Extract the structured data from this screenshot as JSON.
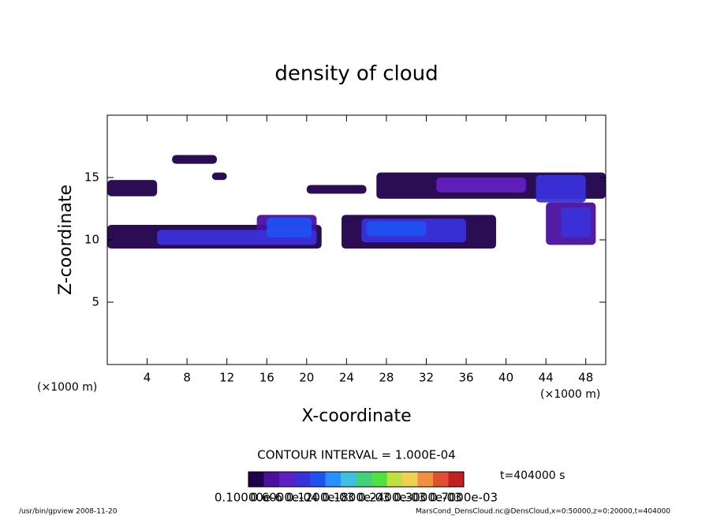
{
  "chart_data": {
    "type": "contour",
    "title": "density of cloud",
    "xlabel": "X-coordinate",
    "ylabel": "Z-coordinate",
    "x_unit": "(×1000 m)",
    "xlim": [
      0,
      50
    ],
    "ylim": [
      0,
      20
    ],
    "xticks": [
      4,
      8,
      12,
      16,
      20,
      24,
      28,
      32,
      36,
      40,
      44,
      48
    ],
    "yticks": [
      5,
      10,
      15
    ],
    "patches": [
      {
        "x": [
          0,
          5
        ],
        "z": [
          13.5,
          14.8
        ],
        "density": 4e-05
      },
      {
        "x": [
          6.5,
          11
        ],
        "z": [
          16.1,
          16.8
        ],
        "density": 4e-05
      },
      {
        "x": [
          10.5,
          12
        ],
        "z": [
          14.8,
          15.4
        ],
        "density": 4e-05
      },
      {
        "x": [
          20,
          26
        ],
        "z": [
          13.7,
          14.4
        ],
        "density": 4e-05
      },
      {
        "x": [
          0,
          21.5
        ],
        "z": [
          9.3,
          11.2
        ],
        "density": 4e-05
      },
      {
        "x": [
          15,
          21
        ],
        "z": [
          10,
          12
        ],
        "density": 5e-05
      },
      {
        "x": [
          5,
          21
        ],
        "z": [
          9.6,
          10.8
        ],
        "density": 0.00015
      },
      {
        "x": [
          16,
          20.5
        ],
        "z": [
          10.2,
          11.8
        ],
        "density": 0.00022
      },
      {
        "x": [
          23.5,
          39
        ],
        "z": [
          9.3,
          12
        ],
        "density": 4e-05
      },
      {
        "x": [
          25.5,
          36
        ],
        "z": [
          9.8,
          11.7
        ],
        "density": 0.00015
      },
      {
        "x": [
          26,
          32
        ],
        "z": [
          10.3,
          11.5
        ],
        "density": 0.00022
      },
      {
        "x": [
          27,
          50
        ],
        "z": [
          13.3,
          15.4
        ],
        "density": 4e-05
      },
      {
        "x": [
          33,
          42
        ],
        "z": [
          13.8,
          15
        ],
        "density": 0.00012
      },
      {
        "x": [
          43,
          48
        ],
        "z": [
          13,
          15.2
        ],
        "density": 0.00015
      },
      {
        "x": [
          44,
          49
        ],
        "z": [
          9.6,
          13
        ],
        "density": 5e-05
      },
      {
        "x": [
          45.5,
          48.5
        ],
        "z": [
          10.2,
          12.6
        ],
        "density": 0.00015
      }
    ],
    "contour_interval": "CONTOUR INTERVAL = 1.000E-04",
    "time": "t=404000 s",
    "crange": [
      0,
      0.0007
    ],
    "colors": [
      "#20004a",
      "#4a10a0",
      "#6020c0",
      "#3a30d8",
      "#2050f0",
      "#2a90ff",
      "#40c0e0",
      "#40d080",
      "#50e040",
      "#c0e040",
      "#f0d050",
      "#f09040",
      "#e05030",
      "#c02020"
    ],
    "colorbar_ticks": [
      {
        "value": 1e-07,
        "label": "0.10000e-6"
      },
      {
        "value": 6e-05,
        "label": "0.6000e-04"
      },
      {
        "value": 0.00012,
        "label": "0.1200e-03"
      },
      {
        "value": 0.00018,
        "label": "0.1800e-03"
      },
      {
        "value": 0.00024,
        "label": "0.2400e-03"
      },
      {
        "value": 0.0003,
        "label": "0.3000e-03"
      },
      {
        "value": 0.0007,
        "label": "0.7000e-03"
      }
    ],
    "footer_left": "/usr/bin/gpview  2008-11-20",
    "footer_right": "MarsCond_DensCloud.nc@DensCloud,x=0:50000,z=0:20000,t=404000"
  }
}
